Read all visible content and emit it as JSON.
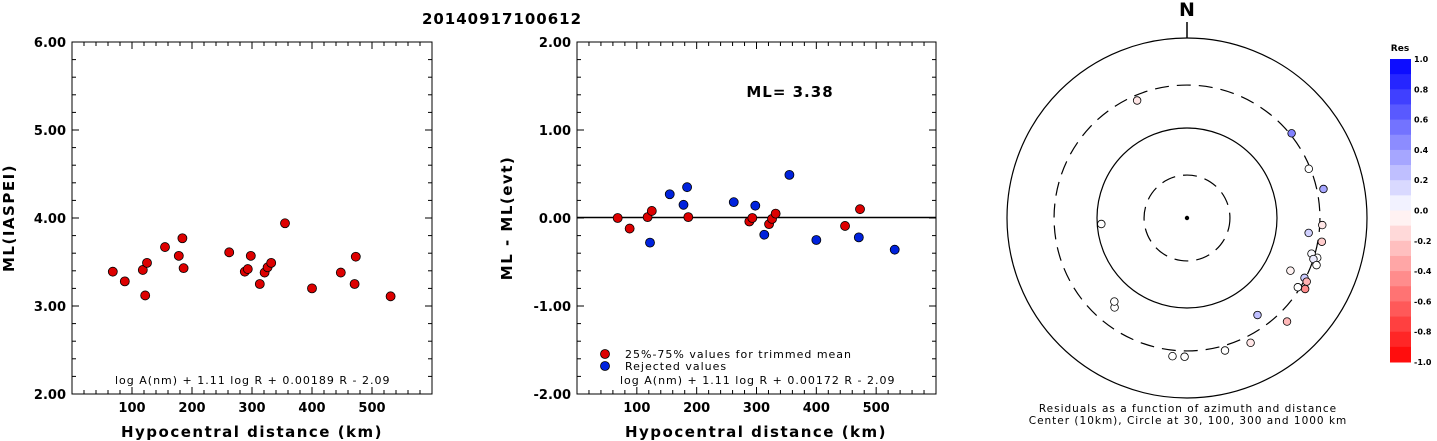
{
  "title": "20140917100612",
  "colors": {
    "trimmed": "#dd0000",
    "rejected": "#0022dd"
  },
  "chart_data": [
    {
      "type": "scatter",
      "xlabel": "Hypocentral distance (km)",
      "ylabel": "ML(IASPEI)",
      "xlim": [
        0,
        600
      ],
      "ylim": [
        2.0,
        6.0
      ],
      "xticks": [
        "100",
        "200",
        "300",
        "400",
        "500"
      ],
      "yticks": [
        "2.00",
        "3.00",
        "4.00",
        "5.00",
        "6.00"
      ],
      "equation": "log A(nm) + 1.11 log R + 0.00189 R - 2.09",
      "points": [
        {
          "x": 68,
          "y": 3.39
        },
        {
          "x": 88,
          "y": 3.28
        },
        {
          "x": 118,
          "y": 3.41
        },
        {
          "x": 122,
          "y": 3.12
        },
        {
          "x": 125,
          "y": 3.49
        },
        {
          "x": 155,
          "y": 3.67
        },
        {
          "x": 178,
          "y": 3.57
        },
        {
          "x": 184,
          "y": 3.77
        },
        {
          "x": 186,
          "y": 3.43
        },
        {
          "x": 262,
          "y": 3.61
        },
        {
          "x": 288,
          "y": 3.39
        },
        {
          "x": 293,
          "y": 3.42
        },
        {
          "x": 298,
          "y": 3.57
        },
        {
          "x": 313,
          "y": 3.25
        },
        {
          "x": 321,
          "y": 3.38
        },
        {
          "x": 326,
          "y": 3.44
        },
        {
          "x": 332,
          "y": 3.49
        },
        {
          "x": 355,
          "y": 3.94
        },
        {
          "x": 400,
          "y": 3.2
        },
        {
          "x": 448,
          "y": 3.38
        },
        {
          "x": 471,
          "y": 3.25
        },
        {
          "x": 473,
          "y": 3.56
        },
        {
          "x": 531,
          "y": 3.11
        }
      ]
    },
    {
      "type": "scatter",
      "xlabel": "Hypocentral distance (km)",
      "ylabel": "ML - ML(evt)",
      "xlim": [
        0,
        600
      ],
      "ylim": [
        -2.0,
        2.0
      ],
      "xticks": [
        "100",
        "200",
        "300",
        "400",
        "500"
      ],
      "yticks": [
        "-2.00",
        "-1.00",
        "0.00",
        "1.00",
        "2.00"
      ],
      "ml_label": "ML= 3.38",
      "equation": "log A(nm) + 1.11 log R + 0.00172 R - 2.09",
      "legend": [
        {
          "label": "25%-75% values for trimmed mean",
          "color": "#dd0000"
        },
        {
          "label": "Rejected values",
          "color": "#0022dd"
        }
      ],
      "series": [
        {
          "name": "25%-75% values for trimmed mean",
          "points": [
            {
              "x": 68,
              "y": 0.0
            },
            {
              "x": 88,
              "y": -0.12
            },
            {
              "x": 118,
              "y": 0.01
            },
            {
              "x": 125,
              "y": 0.08
            },
            {
              "x": 186,
              "y": 0.01
            },
            {
              "x": 288,
              "y": -0.04
            },
            {
              "x": 293,
              "y": 0.0
            },
            {
              "x": 321,
              "y": -0.07
            },
            {
              "x": 326,
              "y": -0.01
            },
            {
              "x": 332,
              "y": 0.05
            },
            {
              "x": 448,
              "y": -0.09
            },
            {
              "x": 473,
              "y": 0.1
            }
          ]
        },
        {
          "name": "Rejected values",
          "points": [
            {
              "x": 122,
              "y": -0.28
            },
            {
              "x": 155,
              "y": 0.27
            },
            {
              "x": 178,
              "y": 0.15
            },
            {
              "x": 184,
              "y": 0.35
            },
            {
              "x": 262,
              "y": 0.18
            },
            {
              "x": 298,
              "y": 0.14
            },
            {
              "x": 313,
              "y": -0.19
            },
            {
              "x": 355,
              "y": 0.49
            },
            {
              "x": 400,
              "y": -0.25
            },
            {
              "x": 471,
              "y": -0.22
            },
            {
              "x": 531,
              "y": -0.36
            }
          ]
        }
      ]
    },
    {
      "type": "polar-scatter",
      "north_label": "N",
      "caption_line1": "Residuals as a function of azimuth and distance",
      "caption_line2": "Center (10km), Circle at 30, 100, 300 and 1000 km",
      "colorbar": {
        "title": "Res",
        "range": [
          -1.0,
          1.0
        ],
        "ticks": [
          "1.0",
          "0.8",
          "0.6",
          "0.4",
          "0.2",
          "0.0",
          "-0.2",
          "-0.4",
          "-0.6",
          "-0.8",
          "-1.0"
        ]
      },
      "stations": [
        {
          "azimuth": 337,
          "distance": 262,
          "residual": -0.1
        },
        {
          "azimuth": 51,
          "distance": 313,
          "residual": 0.49
        },
        {
          "azimuth": 68,
          "distance": 288,
          "residual": 0.0
        },
        {
          "azimuth": 78,
          "distance": 355,
          "residual": 0.35
        },
        {
          "azimuth": 93,
          "distance": 320,
          "residual": -0.1
        },
        {
          "azimuth": 97,
          "distance": 230,
          "residual": 0.18
        },
        {
          "azimuth": 100,
          "distance": 332,
          "residual": -0.2
        },
        {
          "azimuth": 106,
          "distance": 275,
          "residual": 0.02
        },
        {
          "azimuth": 107,
          "distance": 326,
          "residual": 0.0
        },
        {
          "azimuth": 108,
          "distance": 300,
          "residual": 0.08
        },
        {
          "azimuth": 110,
          "distance": 340,
          "residual": 0.0
        },
        {
          "azimuth": 117,
          "distance": 195,
          "residual": -0.05
        },
        {
          "azimuth": 117,
          "distance": 292,
          "residual": 0.2
        },
        {
          "azimuth": 118,
          "distance": 321,
          "residual": -0.3
        },
        {
          "azimuth": 121,
          "distance": 340,
          "residual": -0.45
        },
        {
          "azimuth": 122,
          "distance": 283,
          "residual": 0.0
        },
        {
          "azimuth": 136,
          "distance": 398,
          "residual": -0.28
        },
        {
          "azimuth": 144,
          "distance": 215,
          "residual": 0.25
        },
        {
          "azimuth": 153,
          "distance": 360,
          "residual": -0.1
        },
        {
          "azimuth": 164,
          "distance": 340,
          "residual": 0.0
        },
        {
          "azimuth": 181,
          "distance": 348,
          "residual": 0.0
        },
        {
          "azimuth": 186,
          "distance": 350,
          "residual": 0.0
        },
        {
          "azimuth": 219,
          "distance": 190,
          "residual": 0.0
        },
        {
          "azimuth": 221,
          "distance": 170,
          "residual": 0.0
        },
        {
          "azimuth": 266,
          "distance": 90,
          "residual": 0.0
        }
      ]
    }
  ]
}
